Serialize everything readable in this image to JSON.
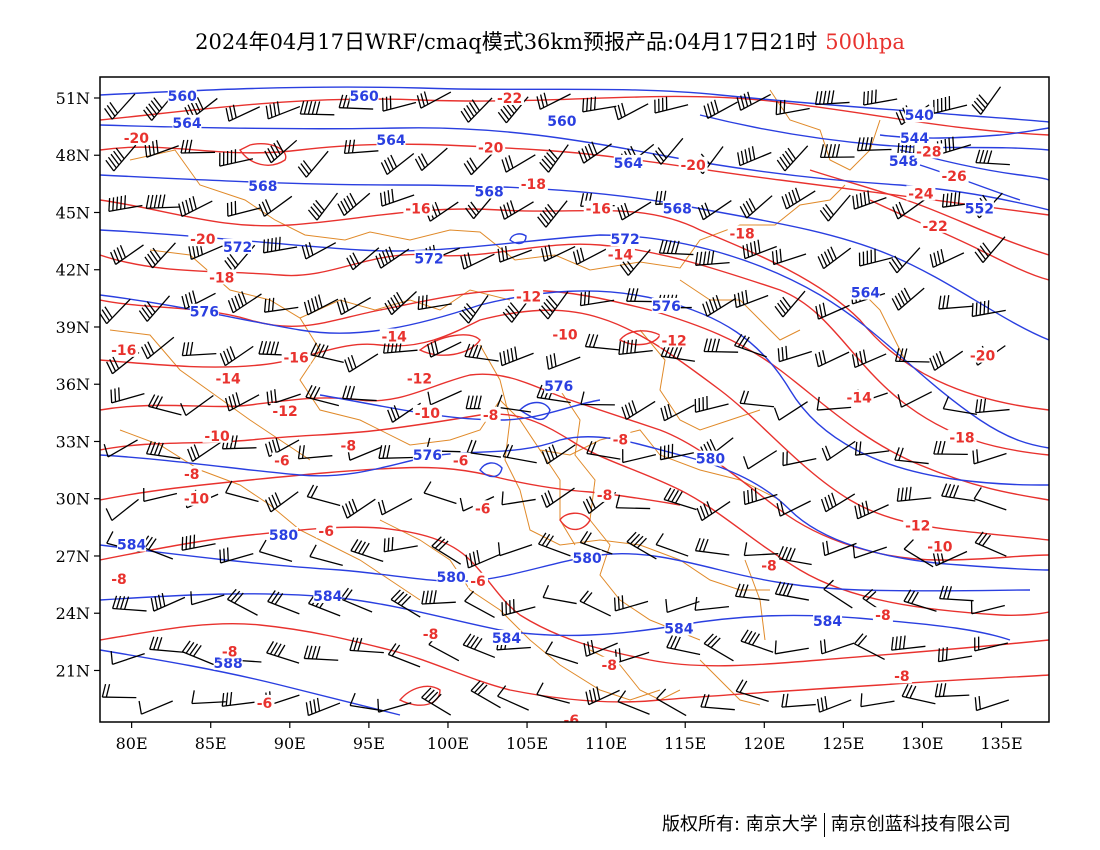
{
  "title": {
    "main": "2024年04月17日WRF/cmaq模式36km预报产品:04月17日21时",
    "level": "500hpa"
  },
  "axes": {
    "lat_labels": [
      "51N",
      "48N",
      "45N",
      "42N",
      "39N",
      "36N",
      "33N",
      "30N",
      "27N",
      "24N",
      "21N"
    ],
    "lat_values": [
      51,
      48,
      45,
      42,
      39,
      36,
      33,
      30,
      27,
      24,
      21
    ],
    "lon_labels": [
      "80E",
      "85E",
      "90E",
      "95E",
      "100E",
      "105E",
      "110E",
      "115E",
      "120E",
      "125E",
      "130E",
      "135E"
    ],
    "lon_values": [
      80,
      85,
      90,
      95,
      100,
      105,
      110,
      115,
      120,
      125,
      130,
      135
    ],
    "lon_range": [
      78,
      138
    ],
    "lat_range": [
      18.3,
      52.1
    ]
  },
  "contours": {
    "height_color": "#2a3fe0",
    "temperature_color": "#e8322e",
    "boundary_color": "#e08a2a",
    "height_labels": [
      {
        "text": "560",
        "lon": 83.2,
        "lat": 51.1
      },
      {
        "text": "560",
        "lon": 94.7,
        "lat": 51.1
      },
      {
        "text": "564",
        "lon": 83.5,
        "lat": 49.7
      },
      {
        "text": "564",
        "lon": 96.4,
        "lat": 48.8
      },
      {
        "text": "560",
        "lon": 107.2,
        "lat": 49.8
      },
      {
        "text": "564",
        "lon": 111.4,
        "lat": 47.6
      },
      {
        "text": "568",
        "lon": 88.3,
        "lat": 46.4
      },
      {
        "text": "568",
        "lon": 102.6,
        "lat": 46.1
      },
      {
        "text": "568",
        "lon": 114.5,
        "lat": 45.2
      },
      {
        "text": "572",
        "lon": 86.7,
        "lat": 43.2
      },
      {
        "text": "572",
        "lon": 98.8,
        "lat": 42.6
      },
      {
        "text": "572",
        "lon": 111.2,
        "lat": 43.6
      },
      {
        "text": "576",
        "lon": 84.6,
        "lat": 39.8
      },
      {
        "text": "576",
        "lon": 113.8,
        "lat": 40.1
      },
      {
        "text": "576",
        "lon": 107.0,
        "lat": 35.9
      },
      {
        "text": "576",
        "lon": 98.7,
        "lat": 32.3
      },
      {
        "text": "580",
        "lon": 116.6,
        "lat": 32.1
      },
      {
        "text": "580",
        "lon": 89.6,
        "lat": 28.1
      },
      {
        "text": "580",
        "lon": 108.8,
        "lat": 26.9
      },
      {
        "text": "580",
        "lon": 100.2,
        "lat": 25.9
      },
      {
        "text": "584",
        "lon": 80.0,
        "lat": 27.6
      },
      {
        "text": "584",
        "lon": 92.4,
        "lat": 24.9
      },
      {
        "text": "584",
        "lon": 103.7,
        "lat": 22.7
      },
      {
        "text": "584",
        "lon": 114.6,
        "lat": 23.2
      },
      {
        "text": "584",
        "lon": 124.0,
        "lat": 23.6
      },
      {
        "text": "588",
        "lon": 86.1,
        "lat": 21.4
      },
      {
        "text": "564",
        "lon": 126.4,
        "lat": 40.8
      },
      {
        "text": "552",
        "lon": 133.6,
        "lat": 45.2
      },
      {
        "text": "548",
        "lon": 128.8,
        "lat": 47.7
      },
      {
        "text": "544",
        "lon": 129.5,
        "lat": 48.9
      },
      {
        "text": "540",
        "lon": 129.8,
        "lat": 50.1
      }
    ],
    "temperature_labels": [
      {
        "text": "-20",
        "lon": 80.3,
        "lat": 48.9
      },
      {
        "text": "-22",
        "lon": 103.9,
        "lat": 51.0
      },
      {
        "text": "-20",
        "lon": 102.7,
        "lat": 48.4
      },
      {
        "text": "-20",
        "lon": 115.5,
        "lat": 47.5
      },
      {
        "text": "-18",
        "lon": 105.4,
        "lat": 46.5
      },
      {
        "text": "-16",
        "lon": 98.1,
        "lat": 45.2
      },
      {
        "text": "-16",
        "lon": 109.5,
        "lat": 45.2
      },
      {
        "text": "-20",
        "lon": 84.5,
        "lat": 43.6
      },
      {
        "text": "-18",
        "lon": 85.7,
        "lat": 41.6
      },
      {
        "text": "-14",
        "lon": 110.9,
        "lat": 42.8
      },
      {
        "text": "-18",
        "lon": 118.6,
        "lat": 43.9
      },
      {
        "text": "-12",
        "lon": 105.1,
        "lat": 40.6
      },
      {
        "text": "-10",
        "lon": 107.4,
        "lat": 38.6
      },
      {
        "text": "-12",
        "lon": 114.3,
        "lat": 38.3
      },
      {
        "text": "-14",
        "lon": 96.6,
        "lat": 38.5
      },
      {
        "text": "-16",
        "lon": 79.5,
        "lat": 37.8
      },
      {
        "text": "-16",
        "lon": 90.4,
        "lat": 37.4
      },
      {
        "text": "-12",
        "lon": 98.2,
        "lat": 36.3
      },
      {
        "text": "-14",
        "lon": 86.1,
        "lat": 36.3
      },
      {
        "text": "-10",
        "lon": 98.7,
        "lat": 34.5
      },
      {
        "text": "-12",
        "lon": 89.7,
        "lat": 34.6
      },
      {
        "text": "-10",
        "lon": 85.4,
        "lat": 33.3
      },
      {
        "text": "-8",
        "lon": 102.7,
        "lat": 34.4
      },
      {
        "text": "-8",
        "lon": 93.7,
        "lat": 32.8
      },
      {
        "text": "-8",
        "lon": 110.9,
        "lat": 33.1
      },
      {
        "text": "-6",
        "lon": 89.5,
        "lat": 32.0
      },
      {
        "text": "-6",
        "lon": 100.8,
        "lat": 32.0
      },
      {
        "text": "-8",
        "lon": 83.8,
        "lat": 31.3
      },
      {
        "text": "-10",
        "lon": 84.1,
        "lat": 30.0
      },
      {
        "text": "-6",
        "lon": 102.2,
        "lat": 29.5
      },
      {
        "text": "-8",
        "lon": 109.9,
        "lat": 30.2
      },
      {
        "text": "-6",
        "lon": 92.3,
        "lat": 28.3
      },
      {
        "text": "-8",
        "lon": 79.2,
        "lat": 25.8
      },
      {
        "text": "-6",
        "lon": 101.9,
        "lat": 25.7
      },
      {
        "text": "-8",
        "lon": 98.9,
        "lat": 22.9
      },
      {
        "text": "-8",
        "lon": 86.2,
        "lat": 22.0
      },
      {
        "text": "-8",
        "lon": 110.2,
        "lat": 21.3
      },
      {
        "text": "-8",
        "lon": 120.3,
        "lat": 26.5
      },
      {
        "text": "-6",
        "lon": 88.4,
        "lat": 19.3
      },
      {
        "text": "-6",
        "lon": 107.8,
        "lat": 18.4
      },
      {
        "text": "-8",
        "lon": 127.5,
        "lat": 23.9
      },
      {
        "text": "-8",
        "lon": 128.7,
        "lat": 20.7
      },
      {
        "text": "-14",
        "lon": 126.0,
        "lat": 35.3
      },
      {
        "text": "-18",
        "lon": 132.5,
        "lat": 33.2
      },
      {
        "text": "-20",
        "lon": 133.8,
        "lat": 37.5
      },
      {
        "text": "-12",
        "lon": 129.7,
        "lat": 28.6
      },
      {
        "text": "-10",
        "lon": 131.1,
        "lat": 27.5
      },
      {
        "text": "-22",
        "lon": 130.8,
        "lat": 44.3
      },
      {
        "text": "-24",
        "lon": 129.9,
        "lat": 46.0
      },
      {
        "text": "-26",
        "lon": 132.0,
        "lat": 46.9
      },
      {
        "text": "-28",
        "lon": 130.4,
        "lat": 48.2
      }
    ]
  },
  "copyright": {
    "left": "版权所有: 南京大学",
    "right": "南京创蓝科技有限公司"
  }
}
